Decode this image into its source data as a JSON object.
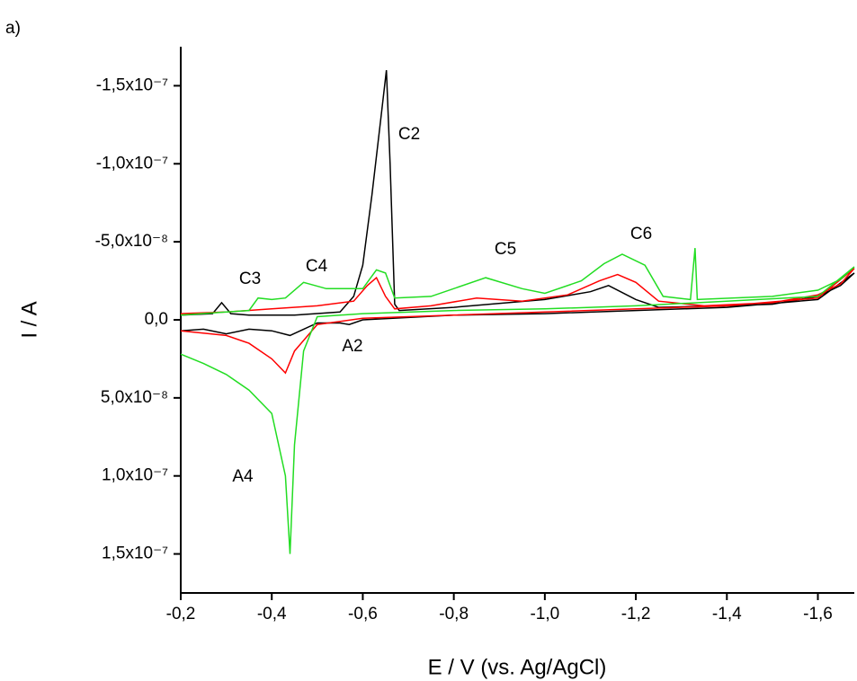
{
  "chart_data": {
    "type": "line",
    "title": "a)",
    "xlabel": "E / V (vs. Ag/AgCl)",
    "ylabel": "I / A",
    "xlim": [
      -0.2,
      -1.68
    ],
    "ylim": [
      1.75e-07,
      -1.75e-07
    ],
    "xticks": [
      {
        "value": -0.2,
        "label": "-0,2"
      },
      {
        "value": -0.4,
        "label": "-0,4"
      },
      {
        "value": -0.6,
        "label": "-0,6"
      },
      {
        "value": -0.8,
        "label": "-0,8"
      },
      {
        "value": -1.0,
        "label": "-1,0"
      },
      {
        "value": -1.2,
        "label": "-1,2"
      },
      {
        "value": -1.4,
        "label": "-1,4"
      },
      {
        "value": -1.6,
        "label": "-1,6"
      }
    ],
    "yticks": [
      {
        "value": -1.5e-07,
        "label": "-1,5x10⁻⁷"
      },
      {
        "value": -1e-07,
        "label": "-1,0x10⁻⁷"
      },
      {
        "value": -5e-08,
        "label": "-5,0x10⁻⁸"
      },
      {
        "value": 0,
        "label": "0,0"
      },
      {
        "value": 5e-08,
        "label": "5,0x10⁻⁸"
      },
      {
        "value": 1e-07,
        "label": "1,0x10⁻⁷"
      },
      {
        "value": 1.5e-07,
        "label": "1,5x10⁻⁷"
      }
    ],
    "annotations": [
      "C2",
      "C3",
      "C4",
      "C5",
      "C6",
      "A2",
      "A4"
    ],
    "series": [
      {
        "color": "#000000",
        "x": [
          -0.2,
          -0.27,
          -0.29,
          -0.31,
          -0.35,
          -0.45,
          -0.55,
          -0.58,
          -0.6,
          -0.62,
          -0.64,
          -0.652,
          -0.66,
          -0.67,
          -0.68,
          -0.8,
          -1.0,
          -1.1,
          -1.14,
          -1.2,
          -1.25,
          -1.4,
          -1.5,
          -1.6,
          -1.65,
          -1.68,
          -1.6,
          -1.4,
          -1.2,
          -1.0,
          -0.8,
          -0.6,
          -0.57,
          -0.55,
          -0.5,
          -0.44,
          -0.4,
          -0.35,
          -0.3,
          -0.25,
          -0.2
        ],
        "values": [
          -3e-09,
          -4e-09,
          -1.1e-08,
          -4e-09,
          -3e-09,
          -3e-09,
          -5e-09,
          -1.5e-08,
          -3.5e-08,
          -8e-08,
          -1.3e-07,
          -1.6e-07,
          -1e-07,
          -1e-08,
          -6e-09,
          -8e-09,
          -1.3e-08,
          -1.8e-08,
          -2.2e-08,
          -1.3e-08,
          -8e-09,
          -9e-09,
          -1e-08,
          -1.5e-08,
          -2.2e-08,
          -3e-08,
          -1.3e-08,
          -8e-09,
          -6e-09,
          -4e-09,
          -3e-09,
          0,
          3e-09,
          2e-09,
          2e-09,
          1e-08,
          7e-09,
          6e-09,
          9e-09,
          6e-09,
          7e-09
        ]
      },
      {
        "color": "#ff0000",
        "x": [
          -0.2,
          -0.3,
          -0.4,
          -0.5,
          -0.58,
          -0.61,
          -0.63,
          -0.65,
          -0.67,
          -0.75,
          -0.85,
          -0.95,
          -1.05,
          -1.12,
          -1.16,
          -1.2,
          -1.25,
          -1.35,
          -1.5,
          -1.6,
          -1.65,
          -1.68,
          -1.6,
          -1.4,
          -1.2,
          -1.0,
          -0.8,
          -0.6,
          -0.5,
          -0.45,
          -0.43,
          -0.4,
          -0.35,
          -0.3,
          -0.2
        ],
        "values": [
          -4e-09,
          -5e-09,
          -7e-09,
          -9e-09,
          -1.2e-08,
          -2.2e-08,
          -2.7e-08,
          -1.5e-08,
          -7e-09,
          -9e-09,
          -1.4e-08,
          -1.2e-08,
          -1.6e-08,
          -2.5e-08,
          -2.9e-08,
          -2.4e-08,
          -1.2e-08,
          -9e-09,
          -1.1e-08,
          -1.6e-08,
          -2.3e-08,
          -3.3e-08,
          -1.4e-08,
          -9e-09,
          -7e-09,
          -5e-09,
          -3e-09,
          -1e-09,
          3e-09,
          2e-08,
          3.4e-08,
          2.5e-08,
          1.5e-08,
          1e-08,
          7e-09
        ]
      },
      {
        "color": "#22dd22",
        "x": [
          -0.2,
          -0.3,
          -0.35,
          -0.37,
          -0.4,
          -0.43,
          -0.47,
          -0.52,
          -0.6,
          -0.63,
          -0.65,
          -0.67,
          -0.75,
          -0.87,
          -0.95,
          -1.0,
          -1.08,
          -1.13,
          -1.17,
          -1.22,
          -1.26,
          -1.32,
          -1.33,
          -1.335,
          -1.5,
          -1.6,
          -1.65,
          -1.68,
          -1.6,
          -1.4,
          -1.2,
          -1.0,
          -0.8,
          -0.6,
          -0.5,
          -0.47,
          -0.45,
          -0.44,
          -0.43,
          -0.4,
          -0.35,
          -0.3,
          -0.25,
          -0.2
        ],
        "values": [
          -3e-09,
          -5e-09,
          -6e-09,
          -1.4e-08,
          -1.3e-08,
          -1.4e-08,
          -2.4e-08,
          -2e-08,
          -2e-08,
          -3.2e-08,
          -3e-08,
          -1.4e-08,
          -1.5e-08,
          -2.7e-08,
          -2e-08,
          -1.7e-08,
          -2.5e-08,
          -3.6e-08,
          -4.2e-08,
          -3.5e-08,
          -1.5e-08,
          -1.3e-08,
          -4.6e-08,
          -1.3e-08,
          -1.5e-08,
          -1.9e-08,
          -2.6e-08,
          -3.4e-08,
          -1.5e-08,
          -1.2e-08,
          -9e-09,
          -7e-09,
          -6e-09,
          -4e-09,
          -2e-09,
          2e-08,
          8e-08,
          1.5e-07,
          1e-07,
          6e-08,
          4.5e-08,
          3.5e-08,
          2.8e-08,
          2.2e-08
        ]
      }
    ]
  }
}
